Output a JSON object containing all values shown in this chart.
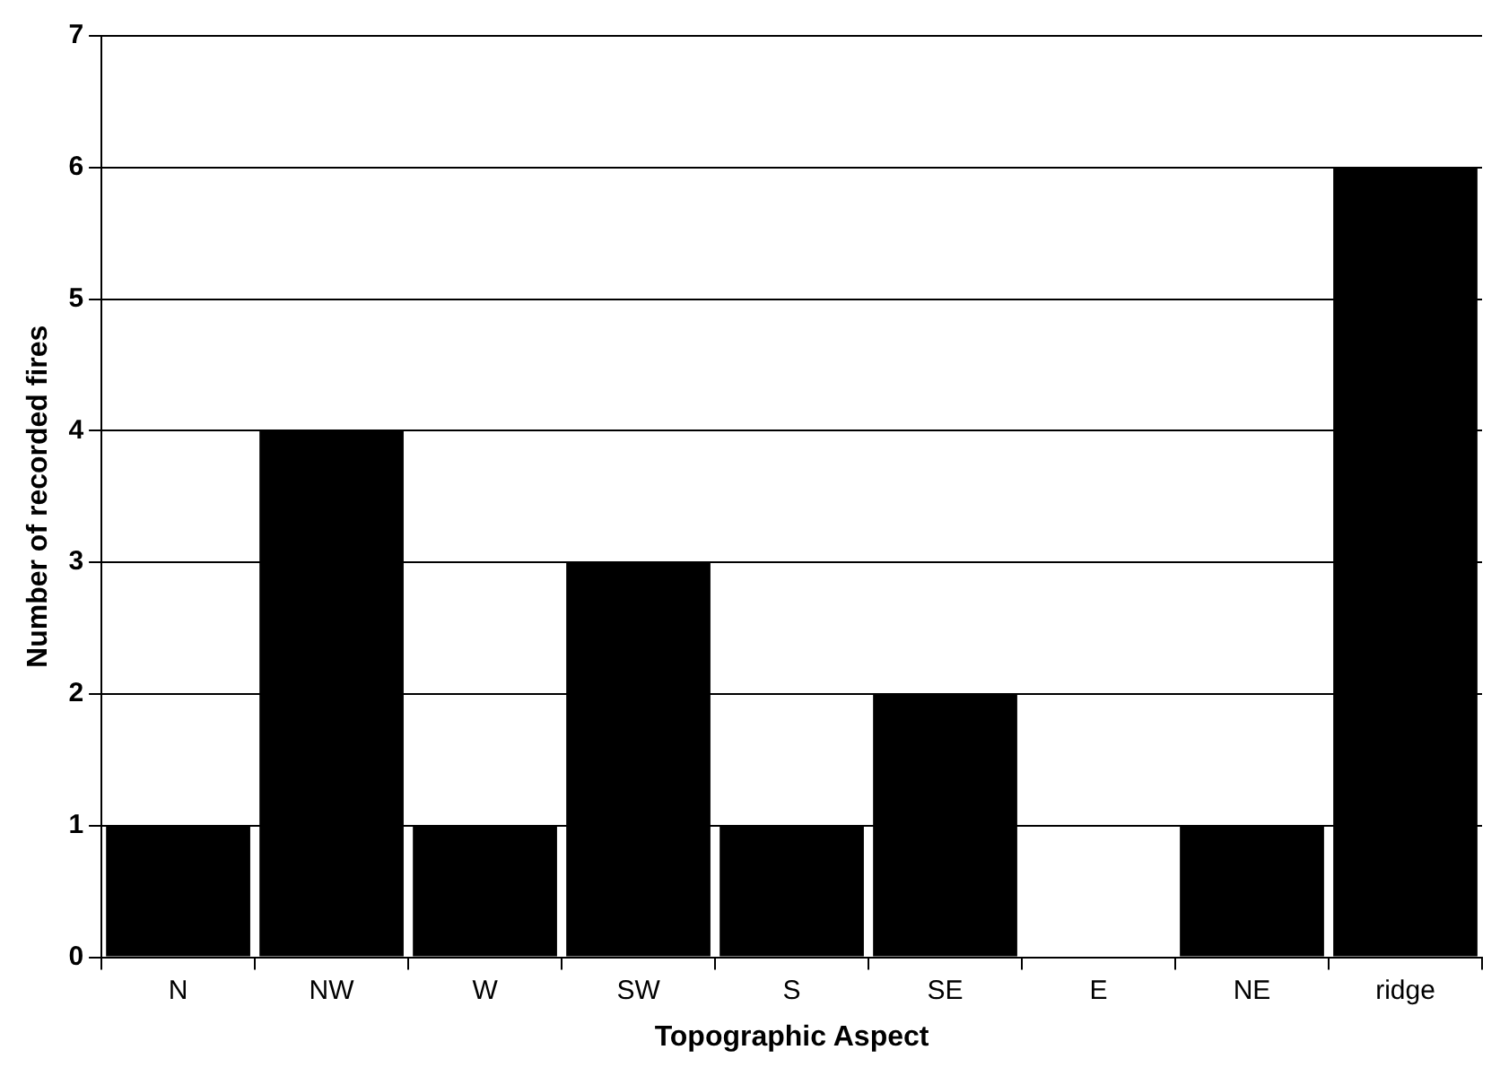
{
  "chart_data": {
    "type": "bar",
    "xlabel": "Topographic Aspect",
    "ylabel": "Number of recorded fires",
    "categories": [
      "N",
      "NW",
      "W",
      "SW",
      "S",
      "SE",
      "E",
      "NE",
      "ridge"
    ],
    "values": [
      1,
      4,
      1,
      3,
      1,
      2,
      0,
      1,
      6
    ],
    "color": "#000000",
    "ylim": [
      0,
      7
    ],
    "yticks": [
      0,
      1,
      2,
      3,
      4,
      5,
      6,
      7
    ],
    "grid": "y"
  }
}
